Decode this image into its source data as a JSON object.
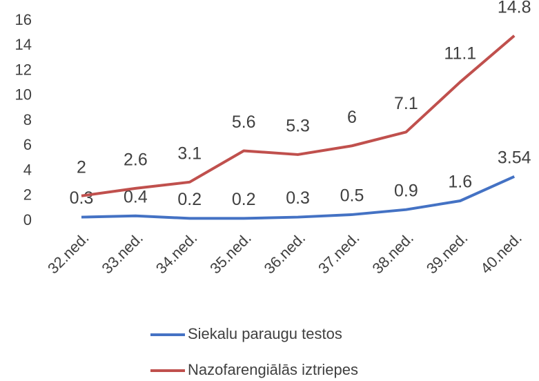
{
  "chart_data": {
    "type": "line",
    "categories": [
      "32.ned.",
      "33.ned.",
      "34.ned.",
      "35.ned.",
      "36.ned.",
      "37.ned.",
      "38.ned.",
      "39.ned.",
      "40.ned."
    ],
    "series": [
      {
        "name": "Siekalu paraugu testos",
        "color": "#4472c4",
        "values": [
          0.3,
          0.4,
          0.2,
          0.2,
          0.3,
          0.5,
          0.9,
          1.6,
          3.54
        ]
      },
      {
        "name": "Nazofarengiālās iztriepes",
        "color": "#c0504d",
        "values": [
          2,
          2.6,
          3.1,
          5.6,
          5.3,
          6,
          7.1,
          11.1,
          14.8
        ]
      }
    ],
    "ylim": [
      0,
      16
    ],
    "yticks": [
      0,
      2,
      4,
      6,
      8,
      10,
      12,
      14,
      16
    ],
    "grid": false,
    "legend": "bottom"
  }
}
